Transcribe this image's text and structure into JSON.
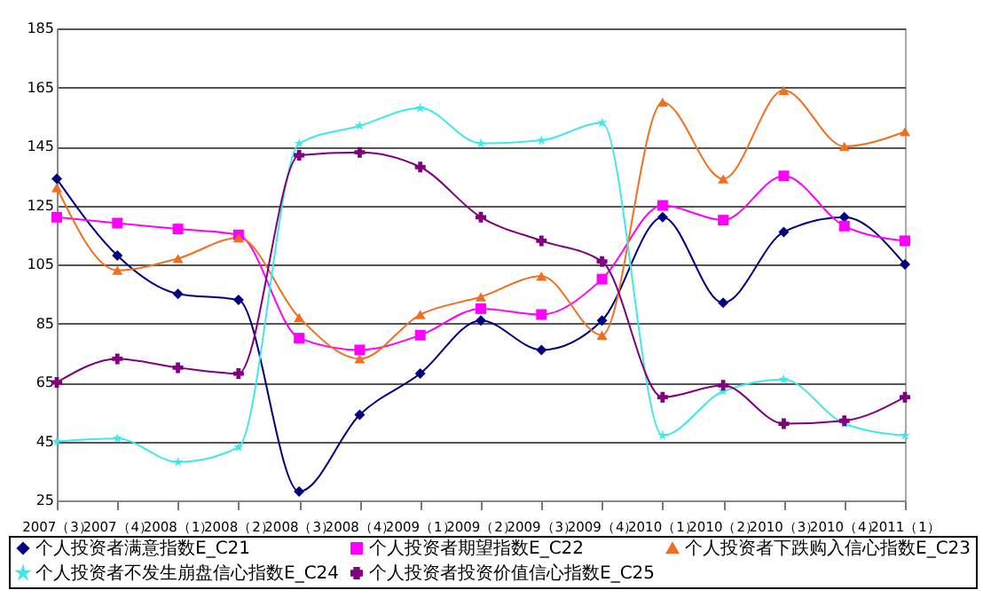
{
  "chart_data": {
    "type": "line",
    "categories": [
      "2007（3）",
      "2007（4）",
      "2008（1）",
      "2008（2）",
      "2008（3）",
      "2008（4）",
      "2009（1）",
      "2009（2）",
      "2009（3）",
      "2009（4）",
      "2010（1）",
      "2010（2）",
      "2010（3）",
      "2010（4）",
      "2011（1）"
    ],
    "series": [
      {
        "name": "个人投资者满意指数E_C21",
        "color": "#000080",
        "marker": "diamond",
        "values": [
          134,
          108,
          95,
          93,
          28,
          54,
          68,
          86,
          76,
          86,
          121,
          92,
          116,
          121,
          105
        ]
      },
      {
        "name": "个人投资者期望指数E_C22",
        "color": "#ff00ff",
        "marker": "square",
        "values": [
          121,
          119,
          117,
          115,
          80,
          76,
          81,
          90,
          88,
          100,
          125,
          120,
          135,
          118,
          113
        ]
      },
      {
        "name": "个人投资者下跌购入信心指数E_C23",
        "color": "#f07020",
        "marker": "triangle",
        "values": [
          131,
          103,
          107,
          114,
          87,
          73,
          88,
          94,
          101,
          81,
          160,
          134,
          164,
          145,
          150
        ]
      },
      {
        "name": "个人投资者不发生崩盘信心指数E_C24",
        "color": "#40e8e8",
        "marker": "star",
        "values": [
          45,
          46,
          38,
          43,
          146,
          152,
          158,
          146,
          147,
          153,
          47,
          62,
          66,
          51,
          47
        ]
      },
      {
        "name": "个人投资者投资价值信心指数E_C25",
        "color": "#800080",
        "marker": "cross",
        "values": [
          65,
          73,
          70,
          68,
          142,
          143,
          138,
          121,
          113,
          106,
          60,
          64,
          51,
          52,
          60
        ]
      }
    ],
    "ylim": [
      25,
      185
    ],
    "yticks": [
      25,
      45,
      65,
      85,
      105,
      125,
      145,
      165,
      185
    ],
    "grid": "y",
    "legend": "bottom",
    "line_style": "solid"
  }
}
